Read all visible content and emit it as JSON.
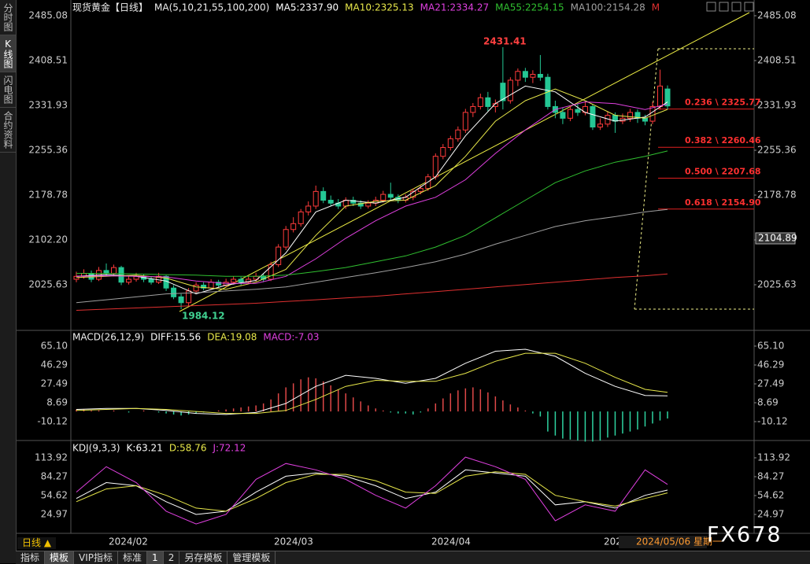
{
  "sidebar": [
    "分时图",
    "K线图",
    "闪电图",
    "合约资料"
  ],
  "watermark": "FX678",
  "footer": {
    "period": "日线 ▲",
    "buttons": [
      "指标",
      "模板",
      "VIP指标",
      "标准",
      "1",
      "2",
      "另存模板",
      "管理模板"
    ]
  },
  "chart_data": [
    {
      "type": "candlestick",
      "title": "现货黄金【日线】",
      "indicator": "MA(5,10,21,55,100,200)",
      "ohlc": [
        [
          2035,
          2048,
          2030,
          2040
        ],
        [
          2040,
          2052,
          2036,
          2045
        ],
        [
          2045,
          2050,
          2030,
          2035
        ],
        [
          2035,
          2056,
          2032,
          2050
        ],
        [
          2050,
          2062,
          2040,
          2045
        ],
        [
          2045,
          2060,
          2040,
          2055
        ],
        [
          2055,
          2058,
          2025,
          2030
        ],
        [
          2030,
          2040,
          2026,
          2035
        ],
        [
          2035,
          2046,
          2031,
          2040
        ],
        [
          2040,
          2044,
          2030,
          2035
        ],
        [
          2035,
          2039,
          2026,
          2030
        ],
        [
          2030,
          2046,
          2027,
          2040
        ],
        [
          2040,
          2042,
          2015,
          2020
        ],
        [
          2020,
          2025,
          2001,
          2005
        ],
        [
          2005,
          2010,
          1984.12,
          1995
        ],
        [
          1995,
          2020,
          1990,
          2015
        ],
        [
          2015,
          2030,
          2010,
          2025
        ],
        [
          2025,
          2030,
          2016,
          2020
        ],
        [
          2020,
          2035,
          2017,
          2030
        ],
        [
          2030,
          2034,
          2021,
          2025
        ],
        [
          2025,
          2036,
          2022,
          2030
        ],
        [
          2030,
          2040,
          2026,
          2035
        ],
        [
          2035,
          2039,
          2025,
          2030
        ],
        [
          2030,
          2040,
          2027,
          2035
        ],
        [
          2035,
          2046,
          2031,
          2040
        ],
        [
          2040,
          2044,
          2030,
          2035
        ],
        [
          2035,
          2065,
          2032,
          2060
        ],
        [
          2060,
          2095,
          2056,
          2090
        ],
        [
          2090,
          2126,
          2085,
          2120
        ],
        [
          2120,
          2141,
          2115,
          2130
        ],
        [
          2130,
          2155,
          2125,
          2150
        ],
        [
          2150,
          2168,
          2144,
          2160
        ],
        [
          2160,
          2195,
          2155,
          2185
        ],
        [
          2185,
          2192,
          2165,
          2170
        ],
        [
          2170,
          2178,
          2160,
          2165
        ],
        [
          2165,
          2172,
          2155,
          2160
        ],
        [
          2160,
          2175,
          2155,
          2170
        ],
        [
          2170,
          2176,
          2160,
          2165
        ],
        [
          2165,
          2170,
          2155,
          2160
        ],
        [
          2160,
          2170,
          2156,
          2165
        ],
        [
          2165,
          2176,
          2160,
          2170
        ],
        [
          2170,
          2186,
          2166,
          2180
        ],
        [
          2180,
          2200,
          2170,
          2175
        ],
        [
          2175,
          2180,
          2165,
          2170
        ],
        [
          2170,
          2180,
          2166,
          2175
        ],
        [
          2175,
          2190,
          2170,
          2185
        ],
        [
          2185,
          2195,
          2180,
          2190
        ],
        [
          2190,
          2215,
          2186,
          2210
        ],
        [
          2210,
          2250,
          2205,
          2245
        ],
        [
          2245,
          2266,
          2240,
          2260
        ],
        [
          2260,
          2280,
          2255,
          2275
        ],
        [
          2275,
          2296,
          2270,
          2290
        ],
        [
          2290,
          2326,
          2285,
          2320
        ],
        [
          2320,
          2336,
          2312,
          2330
        ],
        [
          2330,
          2352,
          2325,
          2345
        ],
        [
          2345,
          2355,
          2322,
          2330
        ],
        [
          2330,
          2342,
          2320,
          2335
        ],
        [
          2370,
          2431.41,
          2325,
          2340
        ],
        [
          2340,
          2380,
          2335,
          2375
        ],
        [
          2375,
          2395,
          2365,
          2390
        ],
        [
          2390,
          2396,
          2372,
          2380
        ],
        [
          2380,
          2392,
          2370,
          2385
        ],
        [
          2385,
          2418,
          2374,
          2380
        ],
        [
          2380,
          2386,
          2325,
          2330
        ],
        [
          2330,
          2340,
          2310,
          2320
        ],
        [
          2320,
          2328,
          2300,
          2310
        ],
        [
          2310,
          2332,
          2305,
          2325
        ],
        [
          2325,
          2335,
          2314,
          2320
        ],
        [
          2320,
          2338,
          2315,
          2330
        ],
        [
          2330,
          2334,
          2290,
          2295
        ],
        [
          2295,
          2310,
          2290,
          2300
        ],
        [
          2300,
          2322,
          2295,
          2315
        ],
        [
          2315,
          2320,
          2285,
          2305
        ],
        [
          2305,
          2318,
          2300,
          2310
        ],
        [
          2310,
          2326,
          2304,
          2320
        ],
        [
          2320,
          2325,
          2302,
          2310
        ],
        [
          2310,
          2316,
          2298,
          2305
        ],
        [
          2305,
          2338,
          2300,
          2330
        ],
        [
          2330,
          2393,
          2325,
          2365
        ],
        [
          2360,
          2366,
          2325,
          2331
        ]
      ],
      "x": [
        0,
        4,
        8,
        12,
        16,
        20,
        24,
        28,
        32,
        36,
        40,
        44,
        48,
        52,
        56,
        60,
        64,
        68,
        72,
        76,
        79
      ],
      "series": [
        {
          "name": "MA5:2337.90",
          "color": "#ffffff",
          "values": [
            2040,
            2043,
            2040,
            2032,
            2010,
            2025,
            2033,
            2080,
            2150,
            2170,
            2165,
            2175,
            2210,
            2280,
            2335,
            2365,
            2355,
            2320,
            2305,
            2312,
            2337.9
          ]
        },
        {
          "name": "MA10:2325.13",
          "color": "#e8e84a",
          "values": [
            2038,
            2040,
            2042,
            2037,
            2022,
            2018,
            2030,
            2052,
            2110,
            2160,
            2168,
            2170,
            2195,
            2245,
            2305,
            2340,
            2360,
            2340,
            2315,
            2310,
            2325.13
          ]
        },
        {
          "name": "MA21:2334.27",
          "color": "#e040e0",
          "values": [
            2040,
            2041,
            2040,
            2039,
            2032,
            2028,
            2028,
            2040,
            2070,
            2105,
            2135,
            2160,
            2175,
            2205,
            2250,
            2290,
            2325,
            2338,
            2335,
            2325,
            2334.27
          ]
        },
        {
          "name": "MA55:2254.15",
          "color": "#30c030",
          "values": [
            2045,
            2045,
            2044,
            2043,
            2042,
            2040,
            2040,
            2042,
            2048,
            2055,
            2065,
            2075,
            2090,
            2110,
            2140,
            2170,
            2200,
            2220,
            2235,
            2245,
            2254.15
          ]
        },
        {
          "name": "MA100:2154.28",
          "color": "#a0a0a0",
          "values": [
            1995,
            2000,
            2005,
            2010,
            2012,
            2015,
            2018,
            2022,
            2030,
            2038,
            2046,
            2055,
            2065,
            2078,
            2095,
            2110,
            2125,
            2135,
            2142,
            2150,
            2154.28
          ]
        },
        {
          "name": "M",
          "color": "#e03030",
          "values": [
            1982,
            1984,
            1986,
            1988,
            1990,
            1992,
            1994,
            1997,
            2000,
            2003,
            2006,
            2010,
            2014,
            2018,
            2022,
            2026,
            2030,
            2034,
            2038,
            2041,
            2044
          ]
        }
      ],
      "up_color": "#ff3b3b",
      "down_color": "#24c794",
      "ylim": [
        1950.4,
        2485.08
      ],
      "yticks": [
        2485.08,
        2408.51,
        2331.93,
        2255.36,
        2178.78,
        {
          "value": 2102.2,
          "label": "2102.20"
        },
        2025.63
      ],
      "fib_levels": [
        {
          "value": 2325.77,
          "label": "0.236 \\ 2325.77"
        },
        {
          "value": 2260.46,
          "label": "0.382 \\ 2260.46"
        },
        {
          "value": 2207.68,
          "label": "0.500 \\ 2207.68"
        },
        {
          "value": 2154.9,
          "label": "0.618 \\ 2154.90"
        }
      ],
      "cursor_price": 2104.89,
      "cursor_date": "2024/05/06 星期一",
      "date_labels": [
        "2024/02",
        "2024/03",
        "2024/04",
        "202"
      ]
    },
    {
      "type": "macd",
      "title": "MACD(26,12,9)",
      "x": [
        0,
        4,
        8,
        12,
        16,
        20,
        24,
        28,
        32,
        36,
        40,
        44,
        48,
        52,
        56,
        60,
        64,
        68,
        72,
        76,
        79
      ],
      "series": [
        {
          "name": "DIFF:15.56",
          "color": "#ffffff",
          "values": [
            2,
            3,
            3,
            1,
            -2,
            -3,
            -1,
            8,
            25,
            36,
            33,
            28,
            33,
            48,
            60,
            62,
            55,
            38,
            25,
            16,
            15.56
          ]
        },
        {
          "name": "DEA:19.08",
          "color": "#e8e84a",
          "values": [
            1,
            2,
            3,
            2,
            0,
            -2,
            -2,
            1,
            12,
            25,
            31,
            30,
            30,
            38,
            50,
            58,
            58,
            48,
            34,
            22,
            19.08
          ]
        }
      ],
      "histogram": {
        "name": "MACD:-7.03",
        "color": "#e040e0",
        "up_color": "#e04848",
        "down_color": "#2ed3a0",
        "values": [
          2,
          2,
          1,
          1,
          0,
          1,
          0,
          -1,
          0,
          1,
          0,
          -1,
          -2,
          -3,
          -4,
          -3,
          -2,
          -1,
          0,
          1,
          2,
          3,
          4,
          5,
          6,
          8,
          12,
          18,
          24,
          28,
          32,
          34,
          33,
          30,
          26,
          22,
          18,
          14,
          10,
          6,
          3,
          1,
          -1,
          -2,
          -2,
          -3,
          -1,
          3,
          8,
          13,
          18,
          21,
          23,
          24,
          22,
          19,
          15,
          11,
          7,
          4,
          1,
          -2,
          -5,
          -20,
          -24,
          -27,
          -28,
          -29,
          -30,
          -30,
          -29,
          -26,
          -24,
          -22,
          -20,
          -18,
          -15,
          -12,
          -9,
          -7.03
        ]
      },
      "ylim": [
        -27.36,
        79.2
      ],
      "yticks": [
        {
          "value": 65.1,
          "label": "65.10"
        },
        46.29,
        27.49,
        8.69,
        -10.12
      ]
    },
    {
      "type": "line",
      "title": "KDJ(9,3,3)",
      "x": [
        0,
        4,
        8,
        12,
        16,
        20,
        24,
        28,
        32,
        36,
        40,
        44,
        48,
        52,
        56,
        60,
        64,
        68,
        72,
        76,
        79
      ],
      "series": [
        {
          "name": "K:63.21",
          "color": "#ffffff",
          "values": [
            50,
            75,
            70,
            45,
            25,
            30,
            60,
            85,
            90,
            85,
            70,
            50,
            60,
            95,
            90,
            85,
            40,
            45,
            35,
            55,
            63.21
          ]
        },
        {
          "name": "D:58.76",
          "color": "#e8e84a",
          "values": [
            45,
            65,
            70,
            55,
            35,
            30,
            50,
            75,
            88,
            88,
            78,
            60,
            58,
            85,
            92,
            88,
            55,
            45,
            38,
            50,
            58.76
          ]
        },
        {
          "name": "J:72.12",
          "color": "#e040e0",
          "values": [
            60,
            100,
            75,
            30,
            10,
            25,
            80,
            105,
            95,
            80,
            55,
            35,
            70,
            115,
            100,
            80,
            15,
            40,
            30,
            95,
            72.12
          ]
        }
      ],
      "ylim": [
        -4.68,
        138.6
      ],
      "yticks": [
        113.92,
        84.27,
        54.62,
        24.97
      ]
    }
  ]
}
